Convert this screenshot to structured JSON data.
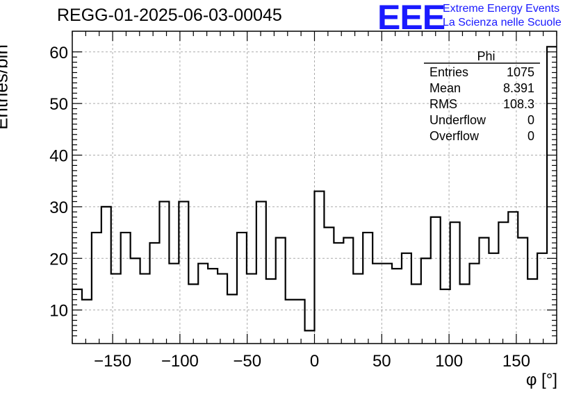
{
  "title": "REGG-01-2025-06-03-00045",
  "logo": {
    "mark": "EEE",
    "line1": "Extreme Energy Events",
    "line2": "La Scienza nelle Scuole",
    "color": "#1a1aff"
  },
  "chart_data": {
    "type": "bar",
    "histogram": true,
    "xlabel": "φ [°]",
    "ylabel": "Entries/bin",
    "xlim": [
      -180,
      180
    ],
    "ylim": [
      3.5,
      64
    ],
    "bin_width": 7.2,
    "grid": true,
    "xticks": [
      -150,
      -100,
      -50,
      0,
      50,
      100,
      150
    ],
    "xtick_labels": [
      "−150",
      "−100",
      "−50",
      "0",
      "50",
      "100",
      "150"
    ],
    "yticks": [
      10,
      20,
      30,
      40,
      50,
      60
    ],
    "ytick_labels": [
      "10",
      "20",
      "30",
      "40",
      "50",
      "60"
    ],
    "values": [
      14,
      12,
      25,
      30,
      17,
      25,
      20,
      17,
      23,
      31,
      19,
      31,
      15,
      19,
      18,
      17,
      13,
      25,
      17,
      31,
      16,
      24,
      12,
      12,
      6,
      33,
      26,
      23,
      24,
      17,
      25,
      19,
      19,
      18,
      21,
      15,
      20,
      28,
      14,
      27,
      15,
      19,
      24,
      21,
      27,
      29,
      24,
      16,
      21,
      61
    ],
    "stats_box": {
      "title": "Phi",
      "placement": "top-right",
      "rows": [
        {
          "label": "Entries",
          "value": "1075"
        },
        {
          "label": "Mean",
          "value": "8.391"
        },
        {
          "label": "RMS",
          "value": "108.3"
        },
        {
          "label": "Underflow",
          "value": "0"
        },
        {
          "label": "Overflow",
          "value": "0"
        }
      ]
    }
  }
}
